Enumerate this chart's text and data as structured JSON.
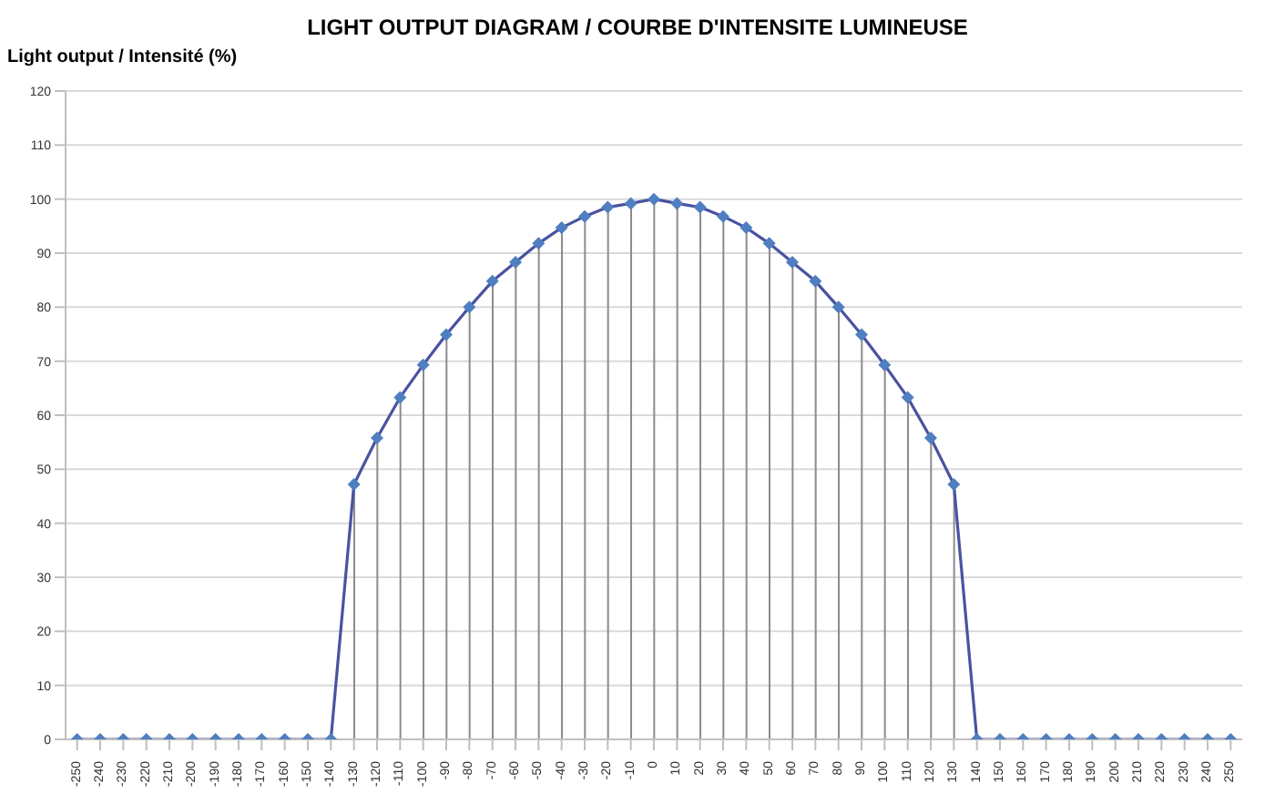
{
  "chart_data": {
    "type": "line",
    "title": "LIGHT OUTPUT DIAGRAM / COURBE D'INTENSITE LUMINEUSE",
    "ylabel": "Light output / Intensité (%)",
    "categories": [
      "-250",
      "-240",
      "-230",
      "-220",
      "-210",
      "-200",
      "-190",
      "-180",
      "-170",
      "-160",
      "-150",
      "-140",
      "-130",
      "-120",
      "-110",
      "-100",
      "-90",
      "-80",
      "-70",
      "-60",
      "-50",
      "-40",
      "-30",
      "-20",
      "-10",
      "0",
      "10",
      "20",
      "30",
      "40",
      "50",
      "60",
      "70",
      "80",
      "90",
      "100",
      "110",
      "120",
      "130",
      "140",
      "150",
      "160",
      "170",
      "180",
      "190",
      "200",
      "210",
      "220",
      "230",
      "240",
      "250"
    ],
    "series": [
      {
        "type": "bar",
        "color": "#8c8c8c",
        "values": [
          0,
          0,
          0,
          0,
          0,
          0,
          0,
          0,
          0,
          0,
          0,
          0,
          47.2,
          55.8,
          63.3,
          69.3,
          74.9,
          80,
          84.8,
          88.3,
          91.8,
          94.7,
          96.8,
          98.5,
          99.2,
          100,
          99.2,
          98.5,
          96.8,
          94.7,
          91.8,
          88.3,
          84.8,
          80,
          74.9,
          69.3,
          63.3,
          55.8,
          47.2,
          0,
          0,
          0,
          0,
          0,
          0,
          0,
          0,
          0,
          0,
          0,
          0
        ]
      },
      {
        "color": "#4a53a0",
        "values": [
          0,
          0,
          0,
          0,
          0,
          0,
          0,
          0,
          0,
          0,
          0,
          0,
          47.2,
          55.8,
          63.3,
          69.3,
          74.9,
          80,
          84.8,
          88.3,
          91.8,
          94.7,
          96.8,
          98.5,
          99.2,
          100,
          99.2,
          98.5,
          96.8,
          94.7,
          91.8,
          88.3,
          84.8,
          80,
          74.9,
          69.3,
          63.3,
          55.8,
          47.2,
          0,
          0,
          0,
          0,
          0,
          0,
          0,
          0,
          0,
          0,
          0,
          0
        ]
      }
    ],
    "ylim": [
      0,
      120
    ],
    "yticks": [
      0,
      10,
      20,
      30,
      40,
      50,
      60,
      70,
      80,
      90,
      100,
      110,
      120
    ],
    "grid": "y",
    "marker": "diamond",
    "line_style": "solid"
  }
}
